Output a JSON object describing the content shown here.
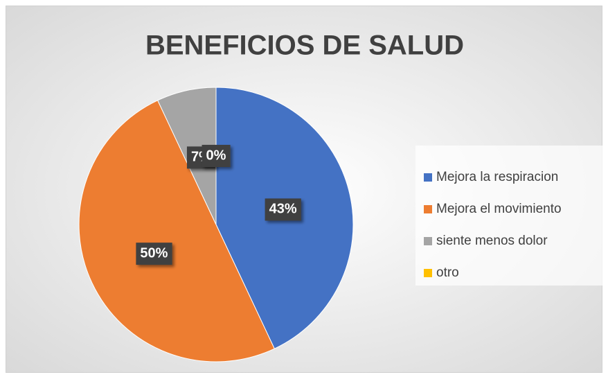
{
  "chart_data": {
    "type": "pie",
    "title": "BENEFICIOS DE SALUD",
    "categories": [
      "Mejora la respiracion",
      "Mejora el movimiento",
      "siente menos dolor",
      "otro"
    ],
    "values": [
      43,
      50,
      7,
      0
    ],
    "value_labels": [
      "43%",
      "50%",
      "7%",
      "0%"
    ],
    "colors": [
      "#4472c4",
      "#ed7d31",
      "#a5a5a5",
      "#ffc000"
    ],
    "legend": "right"
  }
}
